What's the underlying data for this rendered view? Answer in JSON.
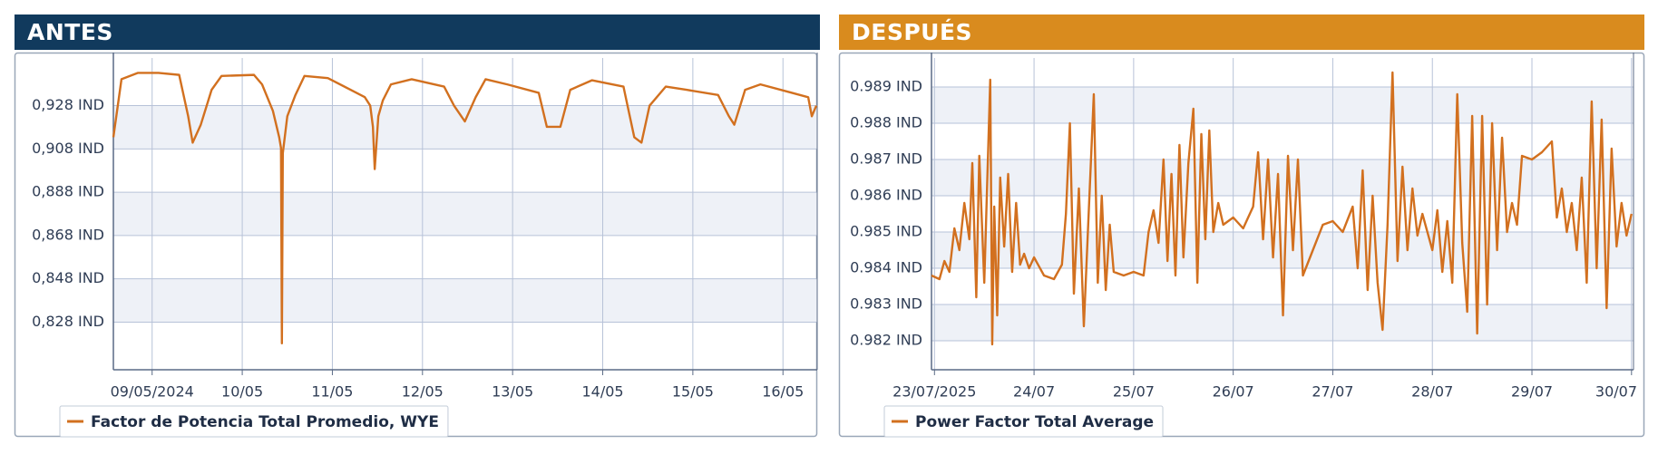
{
  "chart_data": [
    {
      "type": "line",
      "title": "ANTES",
      "x": [
        8.57,
        8.66,
        8.84,
        9.07,
        9.3,
        9.4,
        9.45,
        9.54,
        9.66,
        9.77,
        10.13,
        10.22,
        10.34,
        10.41,
        10.43,
        10.44,
        10.45,
        10.5,
        10.59,
        10.69,
        10.95,
        11.18,
        11.36,
        11.42,
        11.45,
        11.47,
        11.51,
        11.56,
        11.65,
        11.88,
        12.24,
        12.35,
        12.47,
        12.59,
        12.7,
        12.94,
        13.29,
        13.38,
        13.53,
        13.64,
        13.88,
        14.23,
        14.35,
        14.43,
        14.52,
        14.7,
        14.93,
        15.28,
        15.4,
        15.46,
        15.58,
        15.75,
        16.1,
        16.28,
        16.32,
        16.37
      ],
      "series": [
        {
          "name": "Factor de Potencia Total Promedio, WYE",
          "color": "#d2701f",
          "values": [
            0.9134,
            0.9402,
            0.9431,
            0.9431,
            0.9422,
            0.9231,
            0.9109,
            0.9192,
            0.9353,
            0.9417,
            0.9422,
            0.9378,
            0.9256,
            0.9134,
            0.9085,
            0.8182,
            0.906,
            0.9231,
            0.9329,
            0.9417,
            0.9407,
            0.9358,
            0.9319,
            0.928,
            0.9182,
            0.8987,
            0.9231,
            0.9304,
            0.9378,
            0.9402,
            0.9368,
            0.928,
            0.9207,
            0.9319,
            0.9402,
            0.9378,
            0.9339,
            0.9182,
            0.9182,
            0.9353,
            0.9397,
            0.9368,
            0.9134,
            0.9109,
            0.928,
            0.9368,
            0.9353,
            0.9329,
            0.9231,
            0.9192,
            0.9353,
            0.9378,
            0.9339,
            0.9319,
            0.9231,
            0.928
          ]
        }
      ],
      "xlim": [
        8.57,
        16.38
      ],
      "ylim": [
        0.806,
        0.95
      ],
      "xticks": [
        {
          "value": 9,
          "label": "09/05/2024"
        },
        {
          "value": 10,
          "label": "10/05"
        },
        {
          "value": 11,
          "label": "11/05"
        },
        {
          "value": 12,
          "label": "12/05"
        },
        {
          "value": 13,
          "label": "13/05"
        },
        {
          "value": 14,
          "label": "14/05"
        },
        {
          "value": 15,
          "label": "15/05"
        },
        {
          "value": 16,
          "label": "16/05"
        }
      ],
      "yticks": [
        {
          "value": 0.828,
          "label": "0,828 IND"
        },
        {
          "value": 0.848,
          "label": "0,848 IND"
        },
        {
          "value": 0.868,
          "label": "0,868 IND"
        },
        {
          "value": 0.888,
          "label": "0,888 IND"
        },
        {
          "value": 0.908,
          "label": "0,908 IND"
        },
        {
          "value": 0.928,
          "label": "0,928 IND"
        }
      ],
      "grid": true,
      "header_color": "#113a5d"
    },
    {
      "type": "line",
      "title": "DESPUÉS",
      "x": [
        22.97,
        23.05,
        23.1,
        23.15,
        23.2,
        23.25,
        23.3,
        23.35,
        23.38,
        23.42,
        23.45,
        23.5,
        23.53,
        23.56,
        23.58,
        23.6,
        23.63,
        23.66,
        23.7,
        23.74,
        23.78,
        23.82,
        23.86,
        23.9,
        23.95,
        24.0,
        24.1,
        24.2,
        24.28,
        24.32,
        24.36,
        24.4,
        24.45,
        24.5,
        24.55,
        24.6,
        24.64,
        24.68,
        24.72,
        24.76,
        24.8,
        24.9,
        25.0,
        25.1,
        25.15,
        25.2,
        25.25,
        25.3,
        25.34,
        25.38,
        25.42,
        25.46,
        25.5,
        25.55,
        25.6,
        25.64,
        25.68,
        25.72,
        25.76,
        25.8,
        25.85,
        25.9,
        26.0,
        26.1,
        26.2,
        26.25,
        26.3,
        26.35,
        26.4,
        26.45,
        26.5,
        26.55,
        26.6,
        26.65,
        26.7,
        26.8,
        26.9,
        27.0,
        27.1,
        27.2,
        27.25,
        27.3,
        27.35,
        27.4,
        27.45,
        27.5,
        27.55,
        27.6,
        27.65,
        27.7,
        27.75,
        27.8,
        27.85,
        27.9,
        28.0,
        28.05,
        28.1,
        28.15,
        28.2,
        28.25,
        28.3,
        28.35,
        28.4,
        28.45,
        28.5,
        28.55,
        28.6,
        28.65,
        28.7,
        28.75,
        28.8,
        28.85,
        28.9,
        29.0,
        29.1,
        29.2,
        29.25,
        29.3,
        29.35,
        29.4,
        29.45,
        29.5,
        29.55,
        29.6,
        29.65,
        29.7,
        29.75,
        29.8,
        29.85,
        29.9,
        29.95,
        30.0
      ],
      "series": [
        {
          "name": "Power Factor Total Average",
          "color": "#d2701f",
          "values": [
            0.9838,
            0.9837,
            0.9842,
            0.9839,
            0.9851,
            0.9845,
            0.9858,
            0.9848,
            0.9869,
            0.9832,
            0.9871,
            0.9836,
            0.9864,
            0.9892,
            0.9819,
            0.9857,
            0.9827,
            0.9865,
            0.9846,
            0.9866,
            0.9839,
            0.9858,
            0.9841,
            0.9844,
            0.984,
            0.9843,
            0.9838,
            0.9837,
            0.9841,
            0.9855,
            0.988,
            0.9833,
            0.9862,
            0.9824,
            0.9856,
            0.9888,
            0.9836,
            0.986,
            0.9834,
            0.9852,
            0.9839,
            0.9838,
            0.9839,
            0.9838,
            0.985,
            0.9856,
            0.9847,
            0.987,
            0.9842,
            0.9866,
            0.9838,
            0.9874,
            0.9843,
            0.9869,
            0.9884,
            0.9836,
            0.9877,
            0.9848,
            0.9878,
            0.985,
            0.9858,
            0.9852,
            0.9854,
            0.9851,
            0.9857,
            0.9872,
            0.9848,
            0.987,
            0.9843,
            0.9866,
            0.9827,
            0.9871,
            0.9845,
            0.987,
            0.9838,
            0.9845,
            0.9852,
            0.9853,
            0.985,
            0.9857,
            0.984,
            0.9867,
            0.9834,
            0.986,
            0.9836,
            0.9823,
            0.9852,
            0.9894,
            0.9842,
            0.9868,
            0.9845,
            0.9862,
            0.9849,
            0.9855,
            0.9845,
            0.9856,
            0.9839,
            0.9853,
            0.9836,
            0.9888,
            0.9847,
            0.9828,
            0.9882,
            0.9822,
            0.9882,
            0.983,
            0.988,
            0.9845,
            0.9876,
            0.985,
            0.9858,
            0.9852,
            0.9871,
            0.987,
            0.9872,
            0.9875,
            0.9854,
            0.9862,
            0.985,
            0.9858,
            0.9845,
            0.9865,
            0.9836,
            0.9886,
            0.984,
            0.9881,
            0.9829,
            0.9873,
            0.9846,
            0.9858,
            0.9849,
            0.9855
          ]
        }
      ],
      "xlim": [
        22.97,
        30.02
      ],
      "ylim": [
        0.9812,
        0.9898
      ],
      "xticks": [
        {
          "value": 23,
          "label": "23/07/2025"
        },
        {
          "value": 24,
          "label": "24/07"
        },
        {
          "value": 25,
          "label": "25/07"
        },
        {
          "value": 26,
          "label": "26/07"
        },
        {
          "value": 27,
          "label": "27/07"
        },
        {
          "value": 28,
          "label": "28/07"
        },
        {
          "value": 29,
          "label": "29/07"
        },
        {
          "value": 30,
          "label": "30/07"
        }
      ],
      "yticks": [
        {
          "value": 0.982,
          "label": "0.982 IND"
        },
        {
          "value": 0.983,
          "label": "0.983 IND"
        },
        {
          "value": 0.984,
          "label": "0.984 IND"
        },
        {
          "value": 0.985,
          "label": "0.985 IND"
        },
        {
          "value": 0.986,
          "label": "0.986 IND"
        },
        {
          "value": 0.987,
          "label": "0.987 IND"
        },
        {
          "value": 0.988,
          "label": "0.988 IND"
        },
        {
          "value": 0.989,
          "label": "0.989 IND"
        }
      ],
      "grid": true,
      "header_color": "#d98b1e"
    }
  ]
}
